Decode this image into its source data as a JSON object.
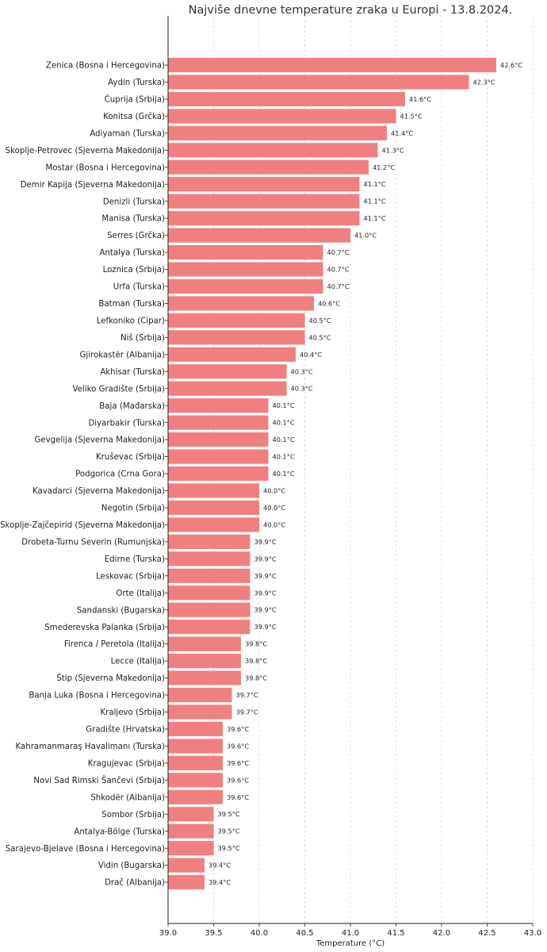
{
  "chart_data": {
    "type": "bar",
    "orientation": "horizontal",
    "title": "Najviše dnevne temperature zraka u Europi - 13.8.2024.",
    "xlabel": "Temperature (°C)",
    "ylabel": "",
    "xlim": [
      39.0,
      43.0
    ],
    "xticks": [
      "39.0",
      "39.5",
      "40.0",
      "40.5",
      "41.0",
      "41.5",
      "42.0",
      "42.5",
      "43.0"
    ],
    "grid": "vertical dashed",
    "bar_color": "#f08080",
    "value_suffix": "°C",
    "categories": [
      "Zenica (Bosna i Hercegovina)",
      "Aydin (Turska)",
      "Ćuprija (Srbija)",
      "Konitsa (Grčka)",
      "Adiyaman (Turska)",
      "Skoplje-Petrovec (Sjeverna Makedonija)",
      "Mostar (Bosna i Hercegovina)",
      "Demir Kapija (Sjeverna Makedonija)",
      "Denizli (Turska)",
      "Manisa (Turska)",
      "Serres (Grčka)",
      "Antalya (Turska)",
      "Loznica (Srbija)",
      "Urfa (Turska)",
      "Batman (Turska)",
      "Lefkoniko (Cipar)",
      "Niš (Srbija)",
      "Gjirokastër (Albanija)",
      "Akhisar (Turska)",
      "Veliko Gradište (Srbija)",
      "Baja (Mađarska)",
      "Diyarbakir (Turska)",
      "Gevgelija (Sjeverna Makedonija)",
      "Kruševac (Srbija)",
      "Podgorica (Crna Gora)",
      "Kavadarci (Sjeverna Makedonija)",
      "Negotin (Srbija)",
      "Skoplje-Zajčepirid (Sjeverna Makedonija)",
      "Drobeta-Turnu Severin (Rumunjska)",
      "Edirne (Turska)",
      "Leskovac (Srbija)",
      "Orte (Italija)",
      "Sandanski (Bugarska)",
      "Smederevska Palanka (Srbija)",
      "Firenca / Peretola (Italija)",
      "Lecce (Italija)",
      "Štip (Sjeverna Makedonija)",
      "Banja Luka (Bosna i Hercegovina)",
      "Kraljevo (Srbija)",
      "Gradište (Hrvatska)",
      "Kahramanmaraş Havalimanı (Turska)",
      "Kragujevac (Srbija)",
      "Novi Sad Rimski Šančevi (Srbija)",
      "Shkodër (Albanija)",
      "Sombor (Srbija)",
      "Antalya-Bölge (Turska)",
      "Sarajevo-Bjelave (Bosna i Hercegovina)",
      "Vidin (Bugarska)",
      "Drač (Albanija)"
    ],
    "values": [
      42.6,
      42.3,
      41.6,
      41.5,
      41.4,
      41.3,
      41.2,
      41.1,
      41.1,
      41.1,
      41.0,
      40.7,
      40.7,
      40.7,
      40.6,
      40.5,
      40.5,
      40.4,
      40.3,
      40.3,
      40.1,
      40.1,
      40.1,
      40.1,
      40.1,
      40.0,
      40.0,
      40.0,
      39.9,
      39.9,
      39.9,
      39.9,
      39.9,
      39.9,
      39.8,
      39.8,
      39.8,
      39.7,
      39.7,
      39.6,
      39.6,
      39.6,
      39.6,
      39.6,
      39.5,
      39.5,
      39.5,
      39.4,
      39.4
    ]
  }
}
